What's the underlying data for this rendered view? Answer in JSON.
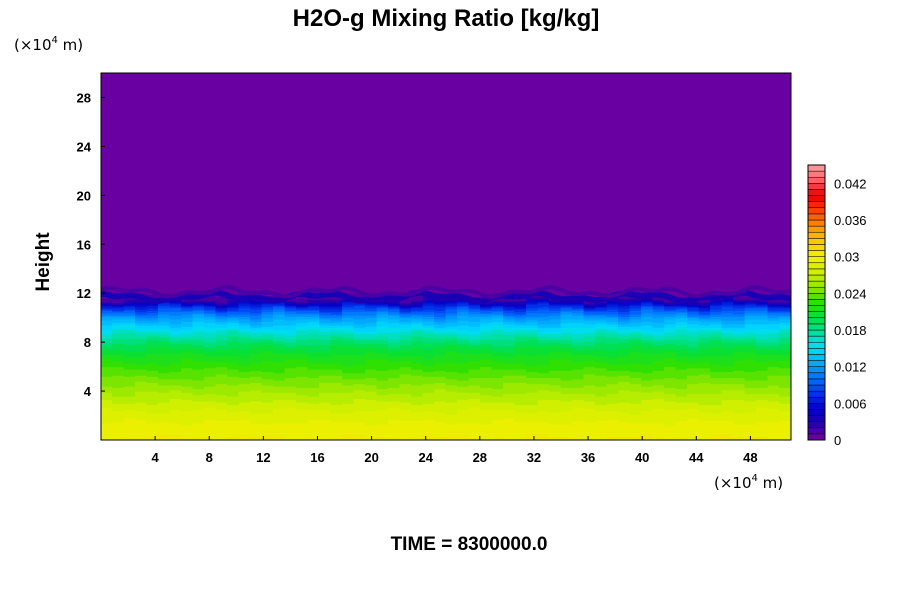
{
  "chart_data": {
    "type": "heatmap",
    "title": "H2O-g Mixing Ratio [kg/kg]",
    "ylabel": "Height",
    "xlabel": "",
    "x_unit": "(×10⁴ m)",
    "y_unit": "(×10⁴ m)",
    "x_unit_parts": {
      "open": "(×10",
      "exp": "4",
      "close": " m)"
    },
    "y_unit_parts": {
      "open": "(×10",
      "exp": "4",
      "close": " m)"
    },
    "xlim": [
      0,
      51
    ],
    "ylim": [
      0,
      30
    ],
    "xticks": [
      4,
      8,
      12,
      16,
      20,
      24,
      28,
      32,
      36,
      40,
      44,
      48
    ],
    "yticks": [
      4,
      8,
      12,
      16,
      20,
      24,
      28
    ],
    "xtick_labels": [
      "4",
      "8",
      "12",
      "16",
      "20",
      "24",
      "28",
      "32",
      "36",
      "40",
      "44",
      "48"
    ],
    "ytick_labels": [
      "4",
      "8",
      "12",
      "16",
      "20",
      "24",
      "28"
    ],
    "vertical_profile": {
      "height": [
        0,
        0.5,
        1,
        1.5,
        2,
        2.5,
        3,
        3.5,
        4,
        4.5,
        5,
        5.5,
        6,
        6.5,
        7,
        7.5,
        8,
        8.5,
        9,
        9.5,
        10,
        10.5,
        11,
        11.5,
        12,
        12.5,
        30
      ],
      "mixing_ratio": [
        0.0302,
        0.0298,
        0.0294,
        0.029,
        0.0285,
        0.0279,
        0.0272,
        0.0265,
        0.0258,
        0.025,
        0.0242,
        0.0234,
        0.0226,
        0.0218,
        0.021,
        0.02,
        0.0188,
        0.0172,
        0.0155,
        0.0138,
        0.012,
        0.0095,
        0.0065,
        0.002,
        0.0005,
        0.0,
        0.0
      ]
    },
    "colorbar": {
      "min": 0,
      "max": 0.045,
      "levels": 45,
      "ticks": [
        0,
        0.006,
        0.012,
        0.018,
        0.024,
        0.03,
        0.036,
        0.042
      ],
      "tick_labels": [
        "0",
        "0.006",
        "0.012",
        "0.018",
        "0.024",
        "0.03",
        "0.036",
        "0.042"
      ],
      "colors": [
        "#7800a0",
        "#2c00a8",
        "#0000c8",
        "#0030e8",
        "#0070ff",
        "#00a8ff",
        "#00dcff",
        "#00e0a0",
        "#00e040",
        "#30e000",
        "#90e800",
        "#d0f000",
        "#f0f000",
        "#f8c800",
        "#ff9000",
        "#ff4000",
        "#e80000",
        "#ff6060",
        "#ffa0a0"
      ]
    },
    "annotation": "TIME = 8300000.0"
  }
}
